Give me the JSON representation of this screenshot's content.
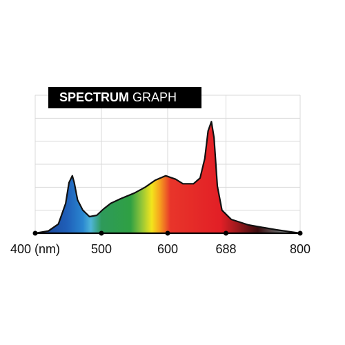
{
  "chart_data": {
    "type": "area",
    "title_parts": [
      "SPECTRUM",
      "GRAPH"
    ],
    "x": [
      400,
      420,
      435,
      446,
      451,
      456,
      459,
      464,
      472,
      482,
      493,
      503,
      514,
      529,
      550,
      566,
      581,
      597,
      612,
      623,
      639,
      649,
      656,
      661,
      666,
      670,
      675,
      682,
      696,
      722,
      764,
      800
    ],
    "values": [
      0,
      0.1,
      0.4,
      1.3,
      2.2,
      2.5,
      2.2,
      1.45,
      1.0,
      0.72,
      0.78,
      1.05,
      1.3,
      1.5,
      1.75,
      2.0,
      2.3,
      2.5,
      2.35,
      2.15,
      2.15,
      2.4,
      3.25,
      4.45,
      4.85,
      4.15,
      2.05,
      1.0,
      0.6,
      0.36,
      0.15,
      0
    ],
    "xlim": [
      400,
      800
    ],
    "xticks": [
      {
        "value": 400,
        "label": "400 (nm)"
      },
      500,
      600,
      688,
      800
    ],
    "ylim": [
      0,
      6
    ],
    "yticks": [
      0,
      1,
      2,
      3,
      4,
      5,
      6
    ],
    "grid": true
  }
}
